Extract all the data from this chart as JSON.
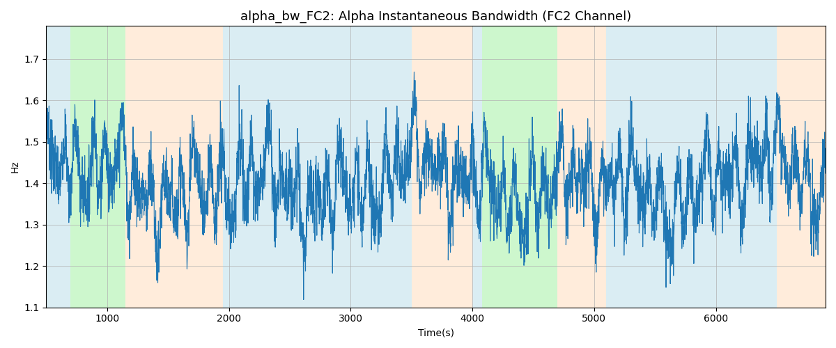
{
  "title": "alpha_bw_FC2: Alpha Instantaneous Bandwidth (FC2 Channel)",
  "xlabel": "Time(s)",
  "ylabel": "Hz",
  "ylim": [
    1.1,
    1.78
  ],
  "xlim": [
    500,
    6900
  ],
  "background_bands": [
    {
      "start": 500,
      "end": 700,
      "color": "#add8e6",
      "alpha": 0.45
    },
    {
      "start": 700,
      "end": 1150,
      "color": "#90ee90",
      "alpha": 0.45
    },
    {
      "start": 1150,
      "end": 1950,
      "color": "#ffdab9",
      "alpha": 0.5
    },
    {
      "start": 1950,
      "end": 3500,
      "color": "#add8e6",
      "alpha": 0.45
    },
    {
      "start": 3500,
      "end": 4000,
      "color": "#ffdab9",
      "alpha": 0.5
    },
    {
      "start": 4000,
      "end": 4080,
      "color": "#add8e6",
      "alpha": 0.45
    },
    {
      "start": 4080,
      "end": 4700,
      "color": "#90ee90",
      "alpha": 0.45
    },
    {
      "start": 4700,
      "end": 5100,
      "color": "#ffdab9",
      "alpha": 0.5
    },
    {
      "start": 5100,
      "end": 5600,
      "color": "#add8e6",
      "alpha": 0.45
    },
    {
      "start": 5600,
      "end": 6500,
      "color": "#add8e6",
      "alpha": 0.45
    },
    {
      "start": 6500,
      "end": 6900,
      "color": "#ffdab9",
      "alpha": 0.5
    }
  ],
  "line_color": "#1f77b4",
  "line_width": 0.8,
  "grid": true,
  "figsize": [
    12,
    5
  ],
  "dpi": 100,
  "title_fontsize": 13
}
